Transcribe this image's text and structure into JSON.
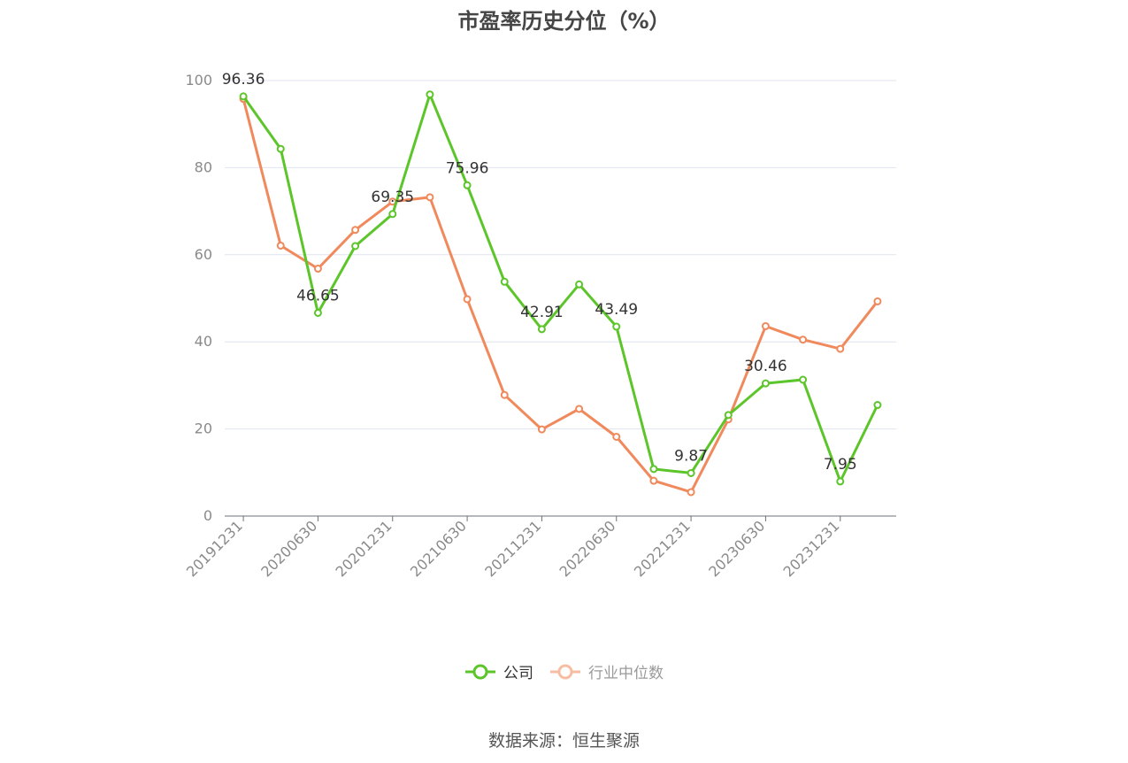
{
  "chart_data": {
    "type": "line",
    "title": "市盈率历史分位（%）",
    "xlabel": "",
    "ylabel": "",
    "ylim": [
      0,
      100
    ],
    "yticks": [
      0,
      20,
      40,
      60,
      80,
      100
    ],
    "x": [
      "20191231",
      "20200331",
      "20200630",
      "20200930",
      "20201231",
      "20210331",
      "20210630",
      "20210930",
      "20211231",
      "20220331",
      "20220630",
      "20220930",
      "20221231",
      "20230331",
      "20230630",
      "20230930",
      "20231231",
      "20240331"
    ],
    "x_tick_labels": [
      "20191231",
      "20200630",
      "20201231",
      "20210630",
      "20211231",
      "20220630",
      "20221231",
      "20230630",
      "20231231"
    ],
    "grid": "horizontal",
    "legend_position": "bottom-center",
    "series": [
      {
        "name": "公司",
        "color": "#5cc52a",
        "values": [
          96.36,
          84.3,
          46.65,
          62.0,
          69.35,
          96.8,
          75.96,
          53.8,
          42.91,
          53.2,
          43.49,
          10.8,
          9.87,
          23.2,
          30.46,
          31.3,
          7.95,
          25.5
        ],
        "labels": {
          "0": "96.36",
          "2": "46.65",
          "4": "69.35",
          "6": "75.96",
          "8": "42.91",
          "10": "43.49",
          "12": "9.87",
          "14": "30.46",
          "16": "7.95"
        }
      },
      {
        "name": "行业中位数",
        "color": "#f0895c",
        "values": [
          95.8,
          62.1,
          56.8,
          65.7,
          72.2,
          73.2,
          49.8,
          27.8,
          19.9,
          24.6,
          18.2,
          8.1,
          5.5,
          22.2,
          43.6,
          40.5,
          38.4,
          49.3
        ]
      }
    ]
  },
  "source_text": "数据来源：恒生聚源"
}
